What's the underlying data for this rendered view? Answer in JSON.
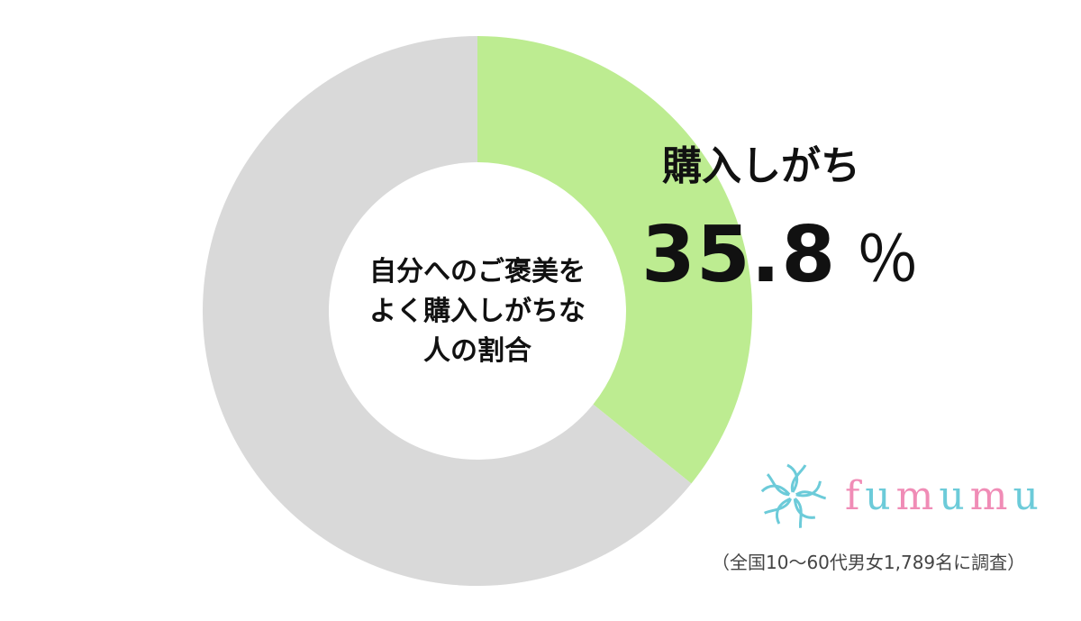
{
  "chart_data": {
    "type": "pie",
    "donut": true,
    "center_label": [
      "自分へのご褒美を",
      "よく購入しがちな",
      "人の割合"
    ],
    "slices": [
      {
        "label": "購入しがち",
        "value": 35.8,
        "color": "#bdec91",
        "labeled": true
      },
      {
        "label": "",
        "value": 64.2,
        "color": "#d9d9d9",
        "labeled": false
      }
    ],
    "value_label": "35.8",
    "unit": "％"
  },
  "logo": {
    "text": "fumumu",
    "colors": [
      "#f08cb6",
      "#6ccbd9"
    ]
  },
  "note": "（全国10～60代男女1,789名に調査）"
}
